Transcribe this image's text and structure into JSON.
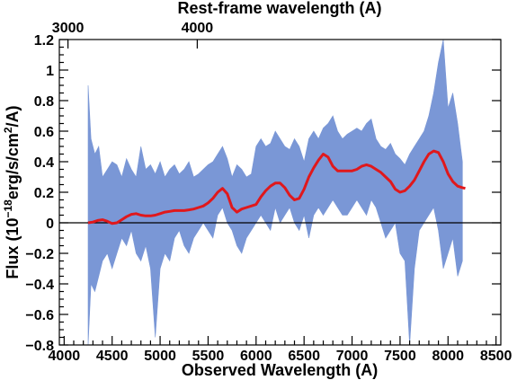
{
  "chart_data": {
    "type": "line",
    "xlabel": "Observed Wavelength (A)",
    "x2label": "Rest-frame wavelength (A)",
    "ylabel_prefix": "Flux (10",
    "ylabel_exp": "−18",
    "ylabel_mid": "erg/s/cm",
    "ylabel_exp2": "2",
    "ylabel_suffix": "/A)",
    "xlim": [
      3950,
      8550
    ],
    "ylim": [
      -0.8,
      1.2
    ],
    "x_ticks": [
      4000,
      4500,
      5000,
      5500,
      6000,
      6500,
      7000,
      7500,
      8000,
      8500
    ],
    "x_tick_labels": [
      "4000",
      "4500",
      "5000",
      "5500",
      "6000",
      "6500",
      "7000",
      "7500",
      "8000",
      "8500"
    ],
    "y_ticks": [
      -0.8,
      -0.6,
      -0.4,
      -0.2,
      0,
      0.2,
      0.4,
      0.6,
      0.8,
      1,
      1.2
    ],
    "y_tick_labels": [
      "−0.8",
      "−0.6",
      "−0.4",
      "−0.2",
      "0",
      "0.2",
      "0.4",
      "0.6",
      "0.8",
      "1",
      "1.2"
    ],
    "top_ticks_obs": [
      4040,
      5387
    ],
    "top_tick_labels": [
      "3000",
      "4000"
    ],
    "zero_line": true,
    "series": [
      {
        "color": "#7a97d6",
        "style": "noisy-fill",
        "x": [
          4250,
          4280,
          4320,
          4360,
          4400,
          4450,
          4500,
          4550,
          4600,
          4650,
          4700,
          4750,
          4800,
          4850,
          4900,
          4950,
          5000,
          5050,
          5100,
          5150,
          5200,
          5250,
          5300,
          5350,
          5400,
          5450,
          5500,
          5550,
          5600,
          5650,
          5700,
          5750,
          5800,
          5850,
          5900,
          5950,
          6000,
          6050,
          6100,
          6150,
          6200,
          6250,
          6300,
          6350,
          6400,
          6450,
          6500,
          6550,
          6600,
          6650,
          6700,
          6750,
          6800,
          6850,
          6900,
          6950,
          7000,
          7050,
          7100,
          7150,
          7200,
          7250,
          7300,
          7350,
          7400,
          7450,
          7500,
          7550,
          7600,
          7650,
          7700,
          7750,
          7800,
          7850,
          7900,
          7950,
          8000,
          8050,
          8100,
          8150
        ],
        "upper": [
          0.9,
          0.55,
          0.45,
          0.5,
          0.3,
          0.35,
          0.4,
          0.38,
          0.3,
          0.42,
          0.35,
          0.3,
          0.5,
          0.35,
          0.38,
          0.32,
          0.4,
          0.3,
          0.35,
          0.38,
          0.32,
          0.35,
          0.4,
          0.3,
          0.32,
          0.35,
          0.38,
          0.4,
          0.45,
          0.5,
          0.42,
          0.3,
          0.38,
          0.35,
          0.3,
          0.32,
          0.5,
          0.55,
          0.5,
          0.52,
          0.6,
          0.55,
          0.5,
          0.48,
          0.55,
          0.5,
          0.4,
          0.55,
          0.6,
          0.55,
          0.62,
          0.65,
          0.7,
          0.6,
          0.55,
          0.58,
          0.6,
          0.62,
          0.6,
          0.65,
          0.68,
          0.55,
          0.5,
          0.48,
          0.52,
          0.45,
          0.42,
          0.38,
          0.45,
          0.5,
          0.55,
          0.6,
          0.7,
          0.85,
          1.05,
          1.2,
          0.75,
          0.85,
          0.65,
          0.4
        ],
        "lower": [
          -0.8,
          -0.4,
          -0.45,
          -0.35,
          -0.25,
          -0.2,
          -0.3,
          -0.2,
          -0.1,
          -0.15,
          -0.05,
          -0.2,
          -0.25,
          -0.15,
          -0.3,
          -0.75,
          -0.3,
          -0.2,
          -0.25,
          -0.1,
          -0.05,
          -0.15,
          -0.2,
          -0.1,
          -0.05,
          0.0,
          -0.05,
          -0.1,
          0.05,
          0.1,
          0.0,
          -0.05,
          -0.15,
          -0.2,
          -0.1,
          -0.05,
          0.0,
          0.05,
          0.0,
          -0.05,
          0.1,
          0.0,
          0.05,
          0.1,
          0.0,
          -0.05,
          0.05,
          -0.1,
          0.05,
          0.1,
          0.05,
          0.1,
          0.15,
          0.1,
          0.05,
          0.05,
          0.1,
          0.15,
          0.1,
          0.05,
          0.15,
          0.1,
          0.0,
          -0.1,
          -0.05,
          0.0,
          -0.2,
          -0.25,
          -0.8,
          -0.3,
          -0.05,
          0.0,
          0.05,
          0.1,
          -0.05,
          -0.3,
          -0.2,
          -0.1,
          -0.35,
          -0.25
        ]
      },
      {
        "color": "#e0181c",
        "style": "smooth-line",
        "x": [
          4250,
          4300,
          4350,
          4400,
          4450,
          4500,
          4550,
          4600,
          4650,
          4700,
          4750,
          4800,
          4850,
          4900,
          4950,
          5000,
          5050,
          5100,
          5150,
          5200,
          5250,
          5300,
          5350,
          5400,
          5450,
          5500,
          5550,
          5600,
          5650,
          5700,
          5750,
          5800,
          5850,
          5900,
          5950,
          6000,
          6050,
          6100,
          6150,
          6200,
          6250,
          6300,
          6350,
          6400,
          6450,
          6500,
          6550,
          6600,
          6650,
          6700,
          6750,
          6800,
          6850,
          6900,
          6950,
          7000,
          7050,
          7100,
          7150,
          7200,
          7250,
          7300,
          7350,
          7400,
          7450,
          7500,
          7550,
          7600,
          7650,
          7700,
          7750,
          7800,
          7850,
          7900,
          7950,
          8000,
          8050,
          8100,
          8150,
          8180
        ],
        "values": [
          0.0,
          0.005,
          0.015,
          0.02,
          0.01,
          -0.005,
          0.0,
          0.02,
          0.04,
          0.055,
          0.06,
          0.05,
          0.045,
          0.045,
          0.05,
          0.06,
          0.07,
          0.075,
          0.08,
          0.08,
          0.08,
          0.085,
          0.09,
          0.1,
          0.11,
          0.13,
          0.16,
          0.2,
          0.225,
          0.19,
          0.1,
          0.07,
          0.09,
          0.1,
          0.11,
          0.12,
          0.17,
          0.21,
          0.24,
          0.26,
          0.26,
          0.23,
          0.18,
          0.15,
          0.16,
          0.22,
          0.3,
          0.36,
          0.41,
          0.45,
          0.43,
          0.37,
          0.34,
          0.34,
          0.34,
          0.34,
          0.35,
          0.37,
          0.38,
          0.37,
          0.35,
          0.33,
          0.3,
          0.27,
          0.22,
          0.2,
          0.21,
          0.24,
          0.28,
          0.34,
          0.4,
          0.45,
          0.47,
          0.46,
          0.4,
          0.32,
          0.27,
          0.24,
          0.23,
          0.225
        ]
      }
    ]
  }
}
